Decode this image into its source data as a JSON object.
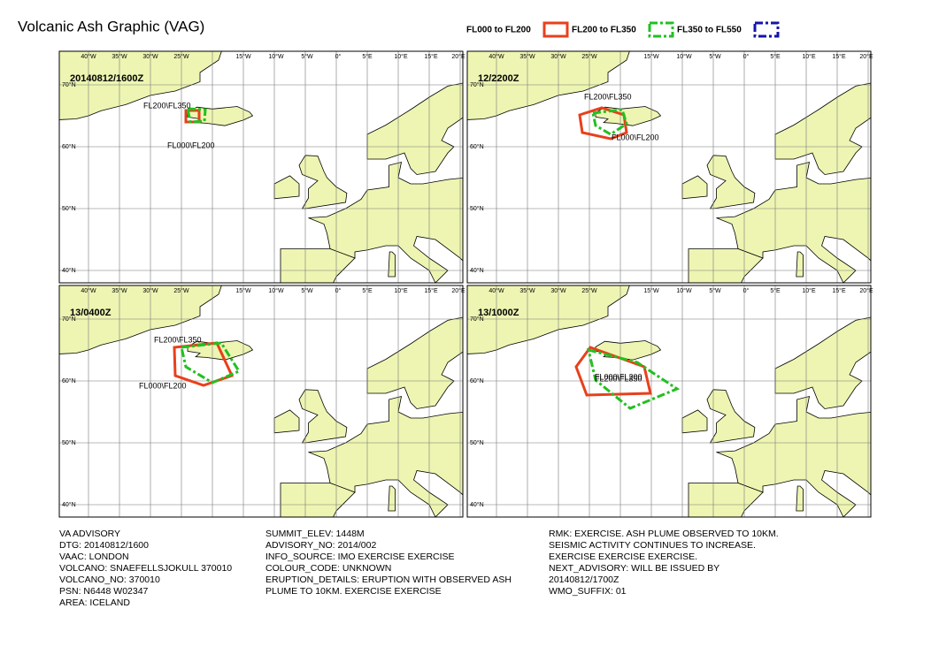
{
  "header": {
    "title": "Volcanic Ash Graphic (VAG)"
  },
  "legend": [
    {
      "label": "FL000 to FL200",
      "color": "#e8401c"
    },
    {
      "label": "FL200 to FL350",
      "color": "#22c020"
    },
    {
      "label": "FL350 to FL550",
      "color": "#1414a8"
    }
  ],
  "map_grid": {
    "longitude_labels": [
      "40°W",
      "35°W",
      "30°W",
      "25°W",
      "15°W",
      "10°W",
      "5°W",
      "0°",
      "5°E",
      "10°E",
      "15°E",
      "20°E"
    ],
    "latitude_labels": [
      "70°N",
      "60°N",
      "50°N",
      "40°N"
    ]
  },
  "panels": [
    {
      "time": "20140812/1600Z",
      "labels": [
        "FL200\\FL350",
        "FL000\\FL200"
      ]
    },
    {
      "time": "12/2200Z",
      "labels": [
        "FL200\\FL350",
        "FL000\\FL200"
      ]
    },
    {
      "time": "13/0400Z",
      "labels": [
        "FL200\\FL350",
        "FL000\\FL200"
      ]
    },
    {
      "time": "13/1000Z",
      "labels": [
        "FL200\\FL350",
        "FL000\\FL200"
      ]
    }
  ],
  "advisory": {
    "columns": [
      [
        "VA ADVISORY",
        "DTG: 20140812/1600",
        "VAAC: LONDON",
        "VOLCANO: SNAEFELLSJOKULL 370010",
        "VOLCANO_NO: 370010",
        "PSN: N6448 W02347",
        "AREA: ICELAND"
      ],
      [
        "SUMMIT_ELEV: 1448M",
        "ADVISORY_NO: 2014/002",
        "INFO_SOURCE: IMO EXERCISE EXERCISE",
        "COLOUR_CODE: UNKNOWN",
        "ERUPTION_DETAILS: ERUPTION WITH OBSERVED ASH",
        "PLUME TO 10KM. EXERCISE EXERCISE"
      ],
      [
        "RMK: EXERCISE. ASH PLUME OBSERVED TO 10KM.",
        "SEISMIC ACTIVITY CONTINUES TO INCREASE.",
        "EXERCISE EXERCISE EXERCISE.",
        "NEXT_ADVISORY: WILL BE ISSUED BY",
        "20140812/1700Z",
        "WMO_SUFFIX: 01"
      ]
    ]
  }
}
